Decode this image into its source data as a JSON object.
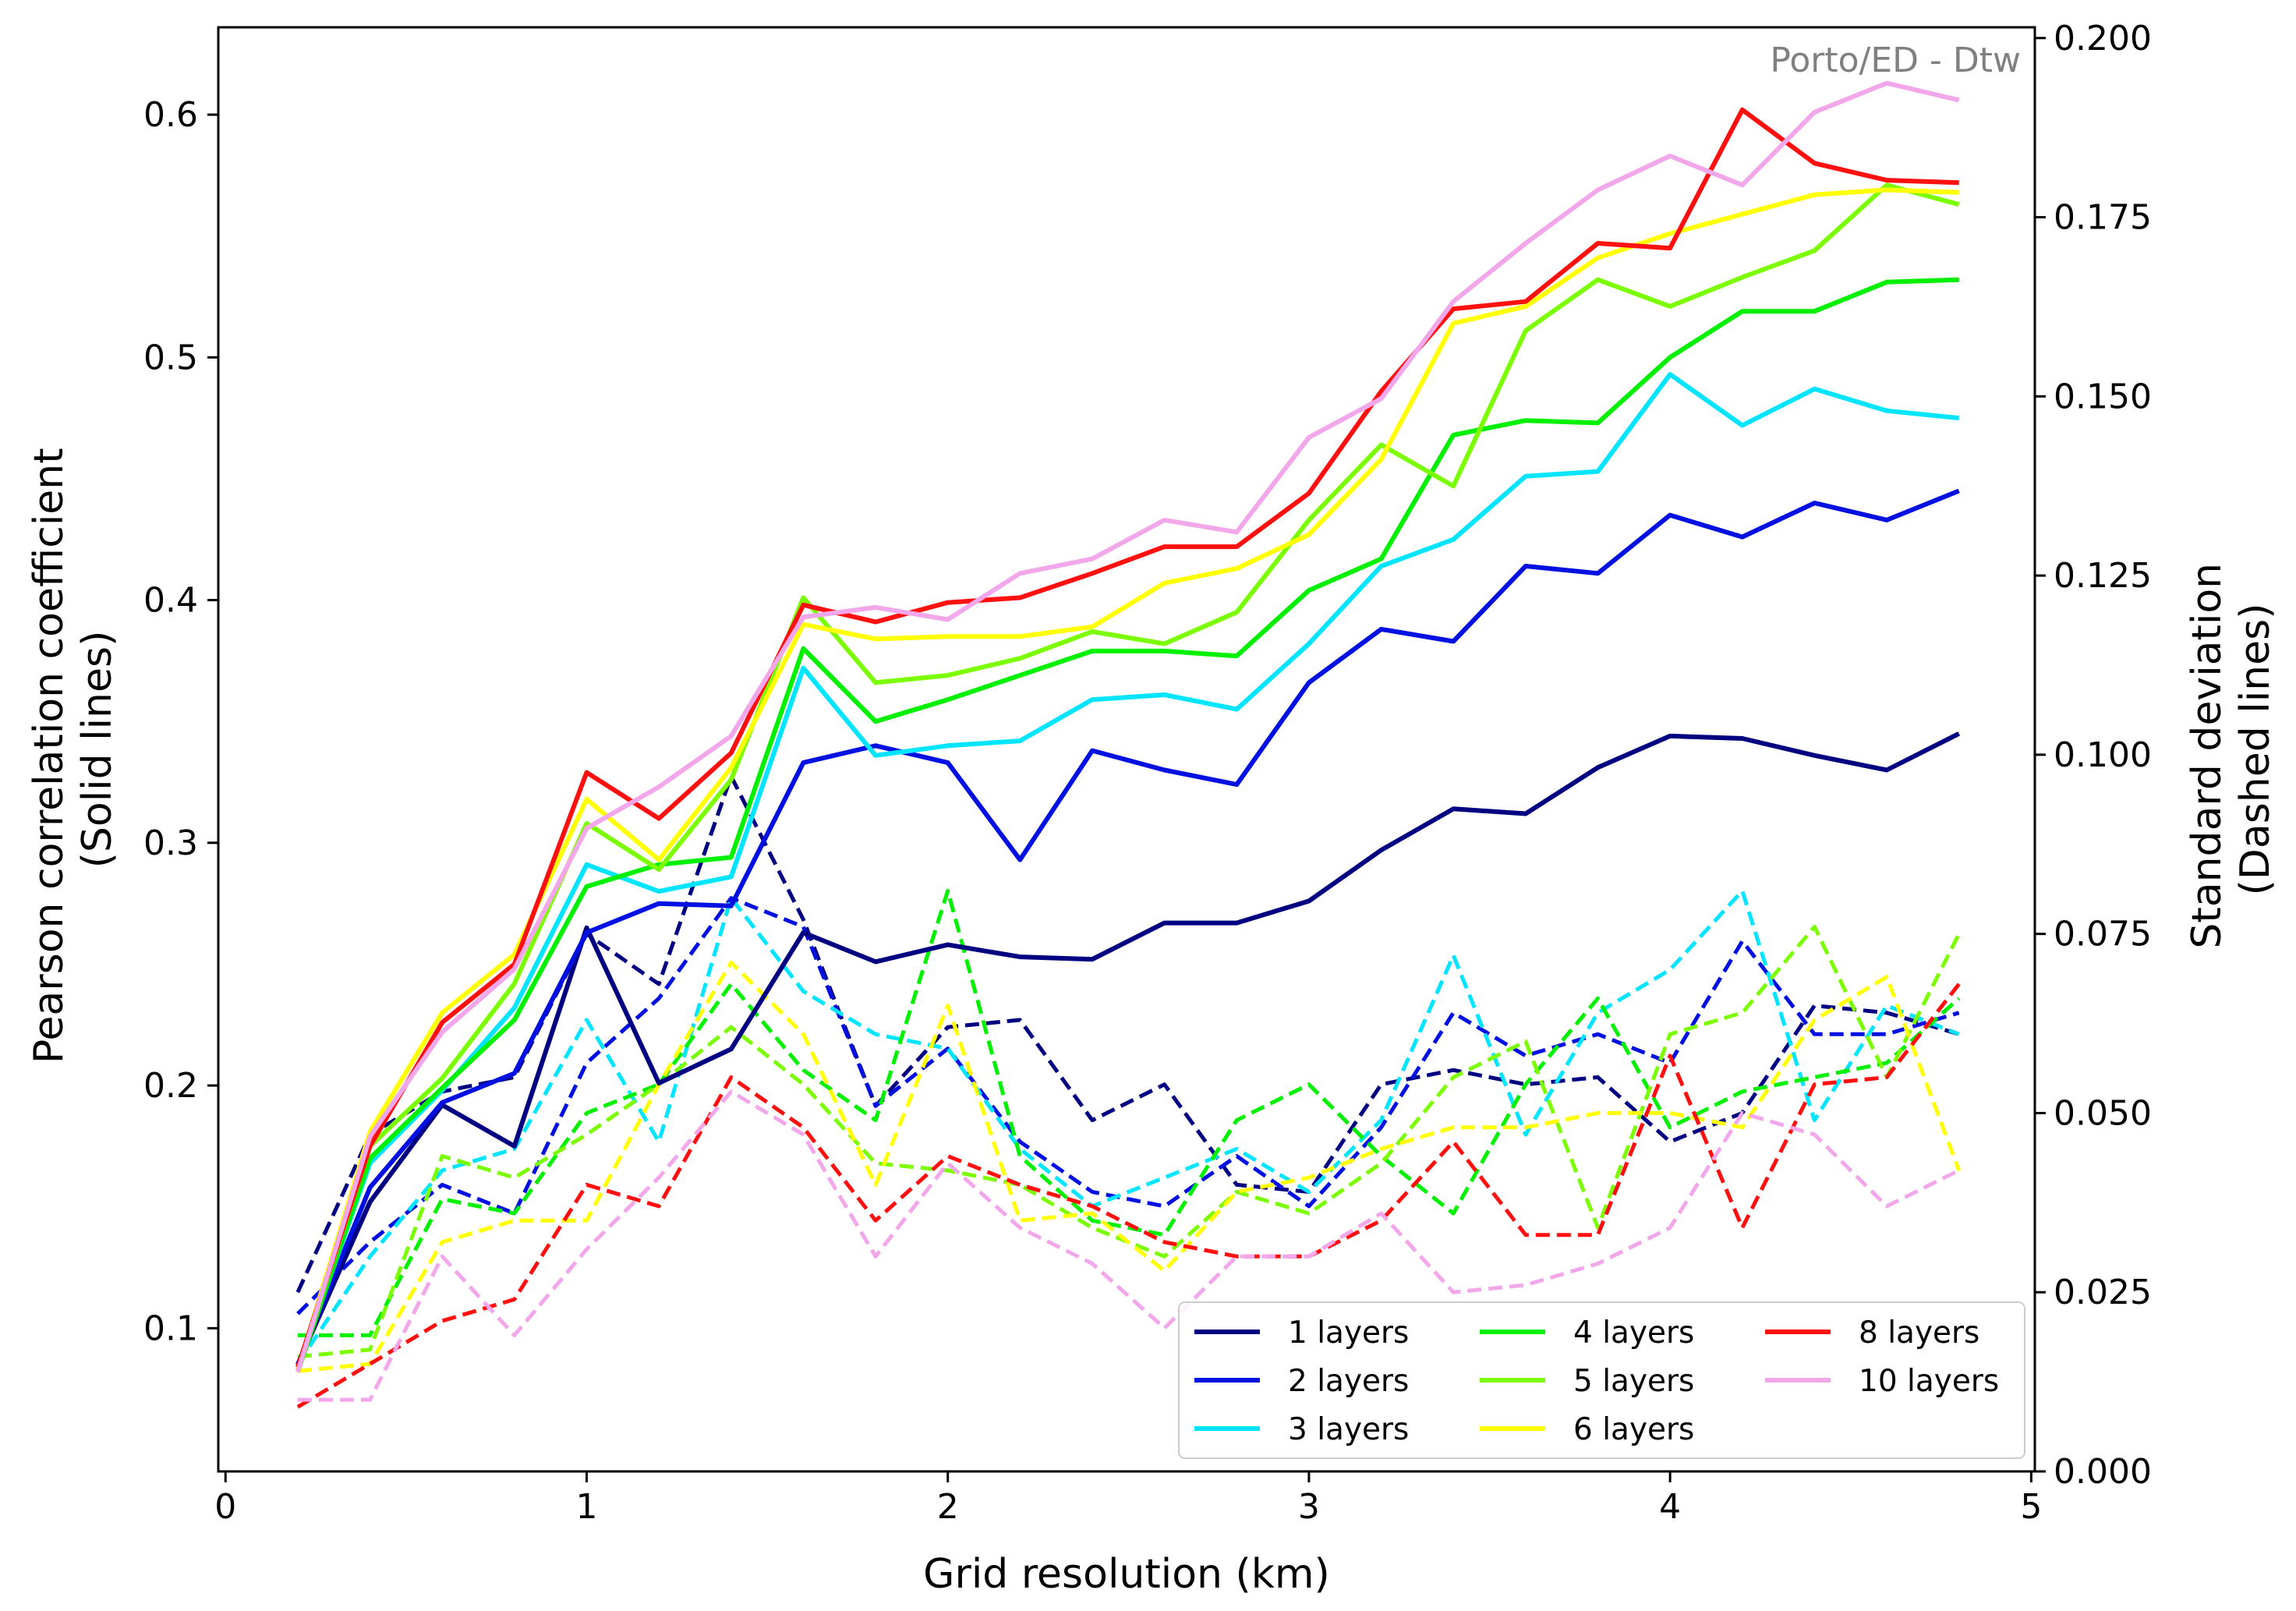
{
  "chart_data": {
    "type": "line",
    "annotation": "Porto/ED - Dtw",
    "xlabel": "Grid resolution (km)",
    "ylabel_left_lines": [
      "Pearson correlation coefficient",
      "(Solid lines)"
    ],
    "ylabel_right_lines": [
      "Standard deviation",
      "(Dashed lines)"
    ],
    "xlim": [
      -0.02,
      5.01
    ],
    "ylim_left": [
      0.041,
      0.636
    ],
    "ylim_right": [
      0.0,
      0.2015
    ],
    "x_ticks": [
      0,
      1,
      2,
      3,
      4,
      5
    ],
    "x_tick_labels": [
      "0",
      "1",
      "2",
      "3",
      "4",
      "5"
    ],
    "y_left_ticks": [
      0.1,
      0.2,
      0.3,
      0.4,
      0.5,
      0.6
    ],
    "y_left_tick_labels": [
      "0.1",
      "0.2",
      "0.3",
      "0.4",
      "0.5",
      "0.6"
    ],
    "y_right_ticks": [
      0.0,
      0.025,
      0.05,
      0.075,
      0.1,
      0.125,
      0.15,
      0.175,
      0.2
    ],
    "y_right_tick_labels": [
      "0.000",
      "0.025",
      "0.050",
      "0.075",
      "0.100",
      "0.125",
      "0.150",
      "0.175",
      "0.200"
    ],
    "grid": false,
    "legend_placement": "lower-right",
    "legend_columns": 3,
    "x": [
      0.2,
      0.4,
      0.6,
      0.8,
      1.0,
      1.2,
      1.4,
      1.6,
      1.8,
      2.0,
      2.2,
      2.4,
      2.6,
      2.8,
      3.0,
      3.2,
      3.4,
      3.6,
      3.8,
      4.0,
      4.2,
      4.4,
      4.6,
      4.8
    ],
    "series": [
      {
        "name": "1 layers",
        "color": "#000080",
        "pearson": [
          0.085,
          0.152,
          0.192,
          0.175,
          0.265,
          0.201,
          0.215,
          0.263,
          0.251,
          0.258,
          0.253,
          0.252,
          0.267,
          0.267,
          0.276,
          0.297,
          0.314,
          0.312,
          0.331,
          0.344,
          0.343,
          0.336,
          0.33,
          0.345
        ],
        "std": [
          0.025,
          0.047,
          0.053,
          0.055,
          0.075,
          0.068,
          0.097,
          0.077,
          0.051,
          0.062,
          0.063,
          0.049,
          0.054,
          0.04,
          0.039,
          0.054,
          0.056,
          0.054,
          0.055,
          0.046,
          0.05,
          0.065,
          0.064,
          0.061
        ]
      },
      {
        "name": "2 layers",
        "color": "#0010E0",
        "pearson": [
          0.085,
          0.158,
          0.193,
          0.205,
          0.263,
          0.275,
          0.274,
          0.333,
          0.34,
          0.333,
          0.293,
          0.338,
          0.33,
          0.324,
          0.366,
          0.388,
          0.383,
          0.414,
          0.411,
          0.435,
          0.426,
          0.44,
          0.433,
          0.445
        ],
        "std": [
          0.022,
          0.032,
          0.04,
          0.036,
          0.057,
          0.066,
          0.08,
          0.076,
          0.051,
          0.059,
          0.046,
          0.039,
          0.037,
          0.044,
          0.037,
          0.048,
          0.064,
          0.058,
          0.061,
          0.057,
          0.074,
          0.061,
          0.061,
          0.064
        ]
      },
      {
        "name": "3 layers",
        "color": "#00E5FF",
        "pearson": [
          0.083,
          0.168,
          0.198,
          0.232,
          0.291,
          0.28,
          0.286,
          0.372,
          0.336,
          0.34,
          0.342,
          0.359,
          0.361,
          0.355,
          0.382,
          0.414,
          0.425,
          0.451,
          0.453,
          0.493,
          0.472,
          0.487,
          0.478,
          0.475
        ],
        "std": [
          0.015,
          0.03,
          0.042,
          0.045,
          0.063,
          0.046,
          0.08,
          0.067,
          0.061,
          0.059,
          0.045,
          0.037,
          0.041,
          0.045,
          0.039,
          0.049,
          0.072,
          0.047,
          0.064,
          0.07,
          0.081,
          0.049,
          0.065,
          0.061
        ]
      },
      {
        "name": "4 layers",
        "color": "#00F000",
        "pearson": [
          0.082,
          0.17,
          0.199,
          0.227,
          0.282,
          0.291,
          0.294,
          0.38,
          0.35,
          0.359,
          0.369,
          0.379,
          0.379,
          0.377,
          0.404,
          0.417,
          0.468,
          0.474,
          0.473,
          0.5,
          0.519,
          0.519,
          0.531,
          0.532
        ],
        "std": [
          0.019,
          0.019,
          0.038,
          0.036,
          0.05,
          0.054,
          0.068,
          0.056,
          0.049,
          0.081,
          0.044,
          0.035,
          0.033,
          0.049,
          0.054,
          0.044,
          0.036,
          0.054,
          0.066,
          0.048,
          0.053,
          0.055,
          0.057,
          0.066
        ]
      },
      {
        "name": "5 layers",
        "color": "#7CFC00",
        "pearson": [
          0.083,
          0.175,
          0.203,
          0.242,
          0.308,
          0.289,
          0.326,
          0.401,
          0.366,
          0.369,
          0.376,
          0.387,
          0.382,
          0.395,
          0.433,
          0.464,
          0.447,
          0.511,
          0.532,
          0.521,
          0.533,
          0.544,
          0.571,
          0.563
        ],
        "std": [
          0.016,
          0.017,
          0.044,
          0.041,
          0.047,
          0.054,
          0.062,
          0.054,
          0.043,
          0.042,
          0.04,
          0.034,
          0.03,
          0.039,
          0.036,
          0.043,
          0.055,
          0.06,
          0.034,
          0.061,
          0.064,
          0.076,
          0.055,
          0.075
        ]
      },
      {
        "name": "6 layers",
        "color": "#FFFF00",
        "pearson": [
          0.083,
          0.181,
          0.23,
          0.254,
          0.318,
          0.293,
          0.331,
          0.39,
          0.384,
          0.385,
          0.385,
          0.389,
          0.407,
          0.413,
          0.427,
          0.458,
          0.514,
          0.521,
          0.541,
          0.551,
          0.559,
          0.567,
          0.569,
          0.568
        ],
        "std": [
          0.014,
          0.015,
          0.032,
          0.035,
          0.035,
          0.054,
          0.071,
          0.061,
          0.04,
          0.065,
          0.035,
          0.036,
          0.028,
          0.039,
          0.041,
          0.045,
          0.048,
          0.048,
          0.05,
          0.05,
          0.048,
          0.063,
          0.069,
          0.042
        ]
      },
      {
        "name": "8 layers",
        "color": "#FF1010",
        "pearson": [
          0.084,
          0.175,
          0.226,
          0.25,
          0.329,
          0.31,
          0.337,
          0.398,
          0.391,
          0.399,
          0.401,
          0.411,
          0.422,
          0.422,
          0.444,
          0.486,
          0.52,
          0.523,
          0.547,
          0.545,
          0.602,
          0.58,
          0.573,
          0.572
        ],
        "std": [
          0.009,
          0.015,
          0.021,
          0.024,
          0.04,
          0.037,
          0.055,
          0.048,
          0.035,
          0.044,
          0.04,
          0.037,
          0.032,
          0.03,
          0.03,
          0.035,
          0.046,
          0.033,
          0.033,
          0.058,
          0.034,
          0.054,
          0.055,
          0.068
        ]
      },
      {
        "name": "10 layers",
        "color": "#F2A7EA",
        "pearson": [
          0.082,
          0.179,
          0.222,
          0.248,
          0.306,
          0.323,
          0.344,
          0.393,
          0.397,
          0.392,
          0.411,
          0.417,
          0.433,
          0.428,
          0.467,
          0.483,
          0.523,
          0.547,
          0.569,
          0.583,
          0.571,
          0.601,
          0.613,
          0.606
        ],
        "std": [
          0.01,
          0.01,
          0.03,
          0.019,
          0.031,
          0.041,
          0.053,
          0.047,
          0.03,
          0.043,
          0.034,
          0.029,
          0.02,
          0.03,
          0.03,
          0.036,
          0.025,
          0.026,
          0.029,
          0.034,
          0.05,
          0.047,
          0.037,
          0.042
        ]
      }
    ]
  }
}
